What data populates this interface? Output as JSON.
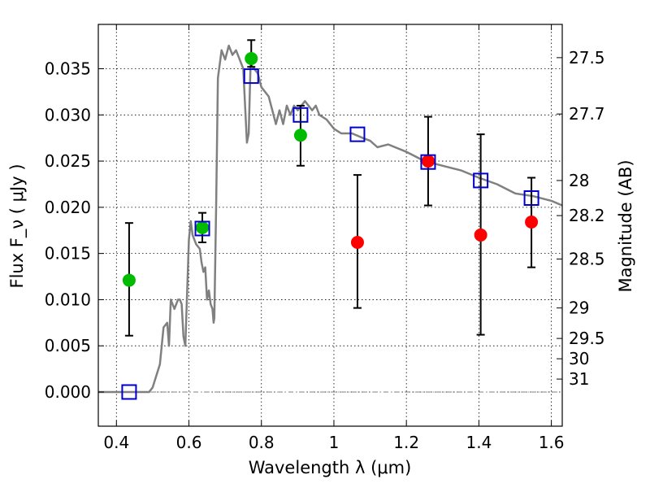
{
  "chart_data": {
    "type": "scatter",
    "xlabel": "Wavelength  λ (μm)",
    "ylabel": "Flux  F_ν  ( μJy )",
    "ylabel_right": "Magnitude (AB)",
    "xlim": [
      0.35,
      1.63
    ],
    "ylim": [
      -0.0037,
      0.0398
    ],
    "grid": true,
    "x_ticks": [
      0.4,
      0.6,
      0.8,
      1.0,
      1.2,
      1.4,
      1.6
    ],
    "x_tick_labels": [
      "0.4",
      "0.6",
      "0.8",
      "1",
      "1.2",
      "1.4",
      "1.6"
    ],
    "y_ticks": [
      0.0,
      0.005,
      0.01,
      0.015,
      0.02,
      0.025,
      0.03,
      0.035
    ],
    "y_tick_labels": [
      "0.000",
      "0.005",
      "0.010",
      "0.015",
      "0.020",
      "0.025",
      "0.030",
      "0.035"
    ],
    "right_axis_ticks": [
      {
        "label": "27.5",
        "flux": 0.0362
      },
      {
        "label": "27.7",
        "flux": 0.0301
      },
      {
        "label": "28",
        "flux": 0.0229
      },
      {
        "label": "28.2",
        "flux": 0.0191
      },
      {
        "label": "28.5",
        "flux": 0.0144
      },
      {
        "label": "29",
        "flux": 0.0091
      },
      {
        "label": "29.5",
        "flux": 0.0058
      },
      {
        "label": "30",
        "flux": 0.0036
      },
      {
        "label": "31",
        "flux": 0.0014
      }
    ],
    "colors": {
      "model": "#808080",
      "model_photometry": "#0000cc",
      "detections": "#00bb00",
      "upper_limits": "#ff0000",
      "error_bars": "#000000",
      "zero_line": "#808080"
    },
    "series": [
      {
        "type": "line",
        "x": [
          0.35,
          0.49,
          0.5,
          0.52,
          0.53,
          0.54,
          0.545,
          0.55,
          0.56,
          0.565,
          0.57,
          0.575,
          0.58,
          0.585,
          0.59,
          0.6,
          0.605,
          0.61,
          0.62,
          0.63,
          0.635,
          0.64,
          0.645,
          0.65,
          0.655,
          0.66,
          0.665,
          0.668,
          0.67,
          0.675,
          0.68,
          0.69,
          0.7,
          0.71,
          0.72,
          0.73,
          0.74,
          0.75,
          0.76,
          0.765,
          0.77,
          0.78,
          0.79,
          0.8,
          0.82,
          0.84,
          0.85,
          0.86,
          0.87,
          0.88,
          0.89,
          0.9,
          0.92,
          0.94,
          0.95,
          0.96,
          0.98,
          1.0,
          1.02,
          1.05,
          1.08,
          1.1,
          1.12,
          1.15,
          1.2,
          1.25,
          1.3,
          1.35,
          1.4,
          1.45,
          1.5,
          1.55,
          1.6,
          1.63
        ],
        "y": [
          0.0,
          0.0,
          0.0005,
          0.003,
          0.007,
          0.0075,
          0.005,
          0.01,
          0.009,
          0.0095,
          0.01,
          0.01,
          0.0095,
          0.006,
          0.005,
          0.0165,
          0.0185,
          0.017,
          0.016,
          0.0155,
          0.014,
          0.013,
          0.0135,
          0.01,
          0.011,
          0.0095,
          0.009,
          0.0075,
          0.008,
          0.02,
          0.034,
          0.037,
          0.036,
          0.0375,
          0.0365,
          0.037,
          0.036,
          0.035,
          0.027,
          0.028,
          0.0355,
          0.035,
          0.0345,
          0.033,
          0.032,
          0.029,
          0.0305,
          0.029,
          0.031,
          0.03,
          0.031,
          0.0305,
          0.0315,
          0.0305,
          0.031,
          0.03,
          0.0295,
          0.0285,
          0.028,
          0.028,
          0.0275,
          0.0272,
          0.0265,
          0.0268,
          0.026,
          0.025,
          0.0245,
          0.024,
          0.0232,
          0.0225,
          0.0215,
          0.0212,
          0.0207,
          0.0202
        ]
      },
      {
        "type": "open_squares",
        "x": [
          0.435,
          0.637,
          0.772,
          0.908,
          1.065,
          1.26,
          1.405,
          1.545
        ],
        "y": [
          0.0,
          0.0177,
          0.0342,
          0.03,
          0.0279,
          0.0249,
          0.0229,
          0.021
        ]
      },
      {
        "type": "detections",
        "x": [
          0.435,
          0.637,
          0.772,
          0.908
        ],
        "y": [
          0.0121,
          0.0178,
          0.0361,
          0.0278
        ],
        "err_low": [
          0.0061,
          0.0162,
          0.0352,
          0.0245
        ],
        "err_high": [
          0.0183,
          0.0194,
          0.0381,
          0.031
        ]
      },
      {
        "type": "upper_limits",
        "x": [
          1.065,
          1.26,
          1.405,
          1.545
        ],
        "y": [
          0.0162,
          0.025,
          0.017,
          0.0184
        ],
        "err_low": [
          0.0091,
          0.0202,
          0.0062,
          0.0135
        ],
        "err_high": [
          0.0235,
          0.0298,
          0.0279,
          0.0232
        ]
      }
    ]
  }
}
